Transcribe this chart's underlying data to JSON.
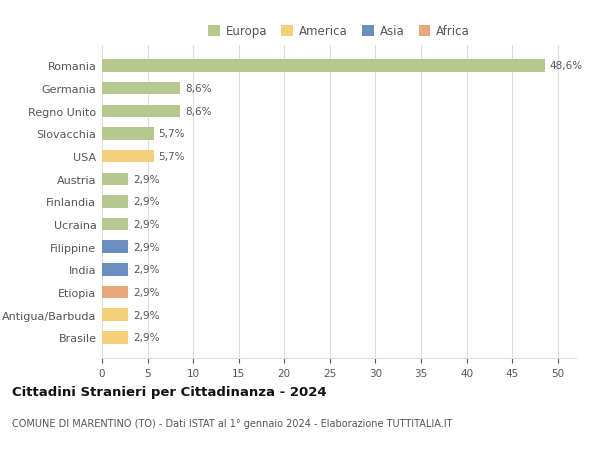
{
  "countries": [
    "Romania",
    "Germania",
    "Regno Unito",
    "Slovacchia",
    "USA",
    "Austria",
    "Finlandia",
    "Ucraina",
    "Filippine",
    "India",
    "Etiopia",
    "Antigua/Barbuda",
    "Brasile"
  ],
  "values": [
    48.6,
    8.6,
    8.6,
    5.7,
    5.7,
    2.9,
    2.9,
    2.9,
    2.9,
    2.9,
    2.9,
    2.9,
    2.9
  ],
  "labels": [
    "48,6%",
    "8,6%",
    "8,6%",
    "5,7%",
    "5,7%",
    "2,9%",
    "2,9%",
    "2,9%",
    "2,9%",
    "2,9%",
    "2,9%",
    "2,9%",
    "2,9%"
  ],
  "continents": [
    "Europa",
    "Europa",
    "Europa",
    "Europa",
    "America",
    "Europa",
    "Europa",
    "Europa",
    "Asia",
    "Asia",
    "Africa",
    "America",
    "America"
  ],
  "colors": {
    "Europa": "#b5c98e",
    "America": "#f5d07a",
    "Asia": "#6b8ebf",
    "Africa": "#e8a87c"
  },
  "title": "Cittadini Stranieri per Cittadinanza - 2024",
  "subtitle": "COMUNE DI MARENTINO (TO) - Dati ISTAT al 1° gennaio 2024 - Elaborazione TUTTITALIA.IT",
  "xlim": [
    0,
    52
  ],
  "xticks": [
    0,
    5,
    10,
    15,
    20,
    25,
    30,
    35,
    40,
    45,
    50
  ],
  "background_color": "#ffffff",
  "grid_color": "#dddddd",
  "bar_height": 0.55,
  "text_color": "#555555",
  "title_color": "#111111",
  "subtitle_color": "#555555"
}
